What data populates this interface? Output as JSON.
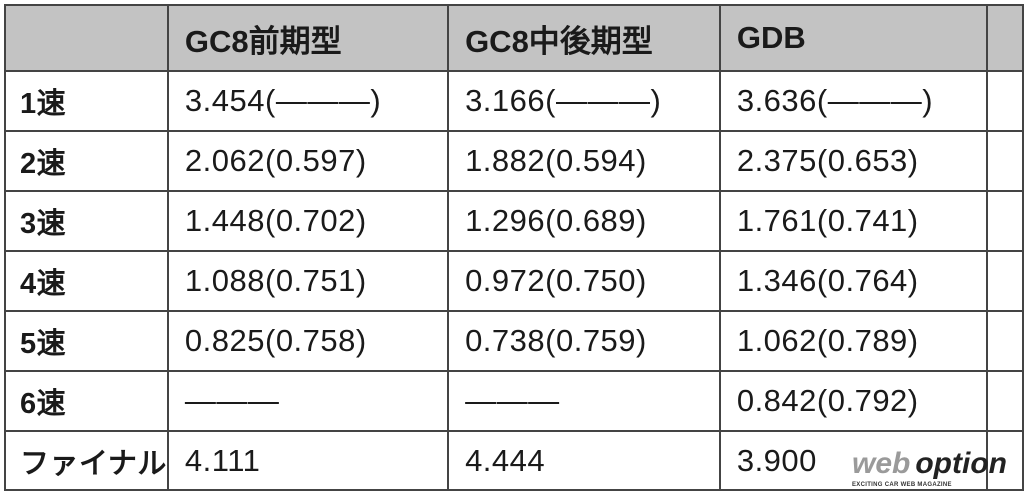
{
  "table": {
    "headers": [
      "",
      "GC8前期型",
      "GC8中後期型",
      "GDB",
      ""
    ],
    "rows": [
      {
        "label": "1速",
        "cells": [
          "3.454(―――)",
          "3.166(―――)",
          "3.636(―――)"
        ]
      },
      {
        "label": "2速",
        "cells": [
          "2.062(0.597)",
          "1.882(0.594)",
          "2.375(0.653)"
        ]
      },
      {
        "label": "3速",
        "cells": [
          "1.448(0.702)",
          "1.296(0.689)",
          "1.761(0.741)"
        ]
      },
      {
        "label": "4速",
        "cells": [
          "1.088(0.751)",
          "0.972(0.750)",
          "1.346(0.764)"
        ]
      },
      {
        "label": "5速",
        "cells": [
          "0.825(0.758)",
          "0.738(0.759)",
          "1.062(0.789)"
        ]
      },
      {
        "label": "6速",
        "cells": [
          "―――",
          "―――",
          "0.842(0.792)"
        ]
      },
      {
        "label": "ファイナル",
        "cells": [
          "4.111",
          "4.444",
          "3.900"
        ]
      }
    ]
  },
  "watermark": {
    "brand_web": "web",
    "brand_option": "option",
    "tagline": "EXCITING CAR WEB MAGAZINE"
  },
  "colors": {
    "header_bg": "#c3c3c3",
    "border": "#444444"
  }
}
